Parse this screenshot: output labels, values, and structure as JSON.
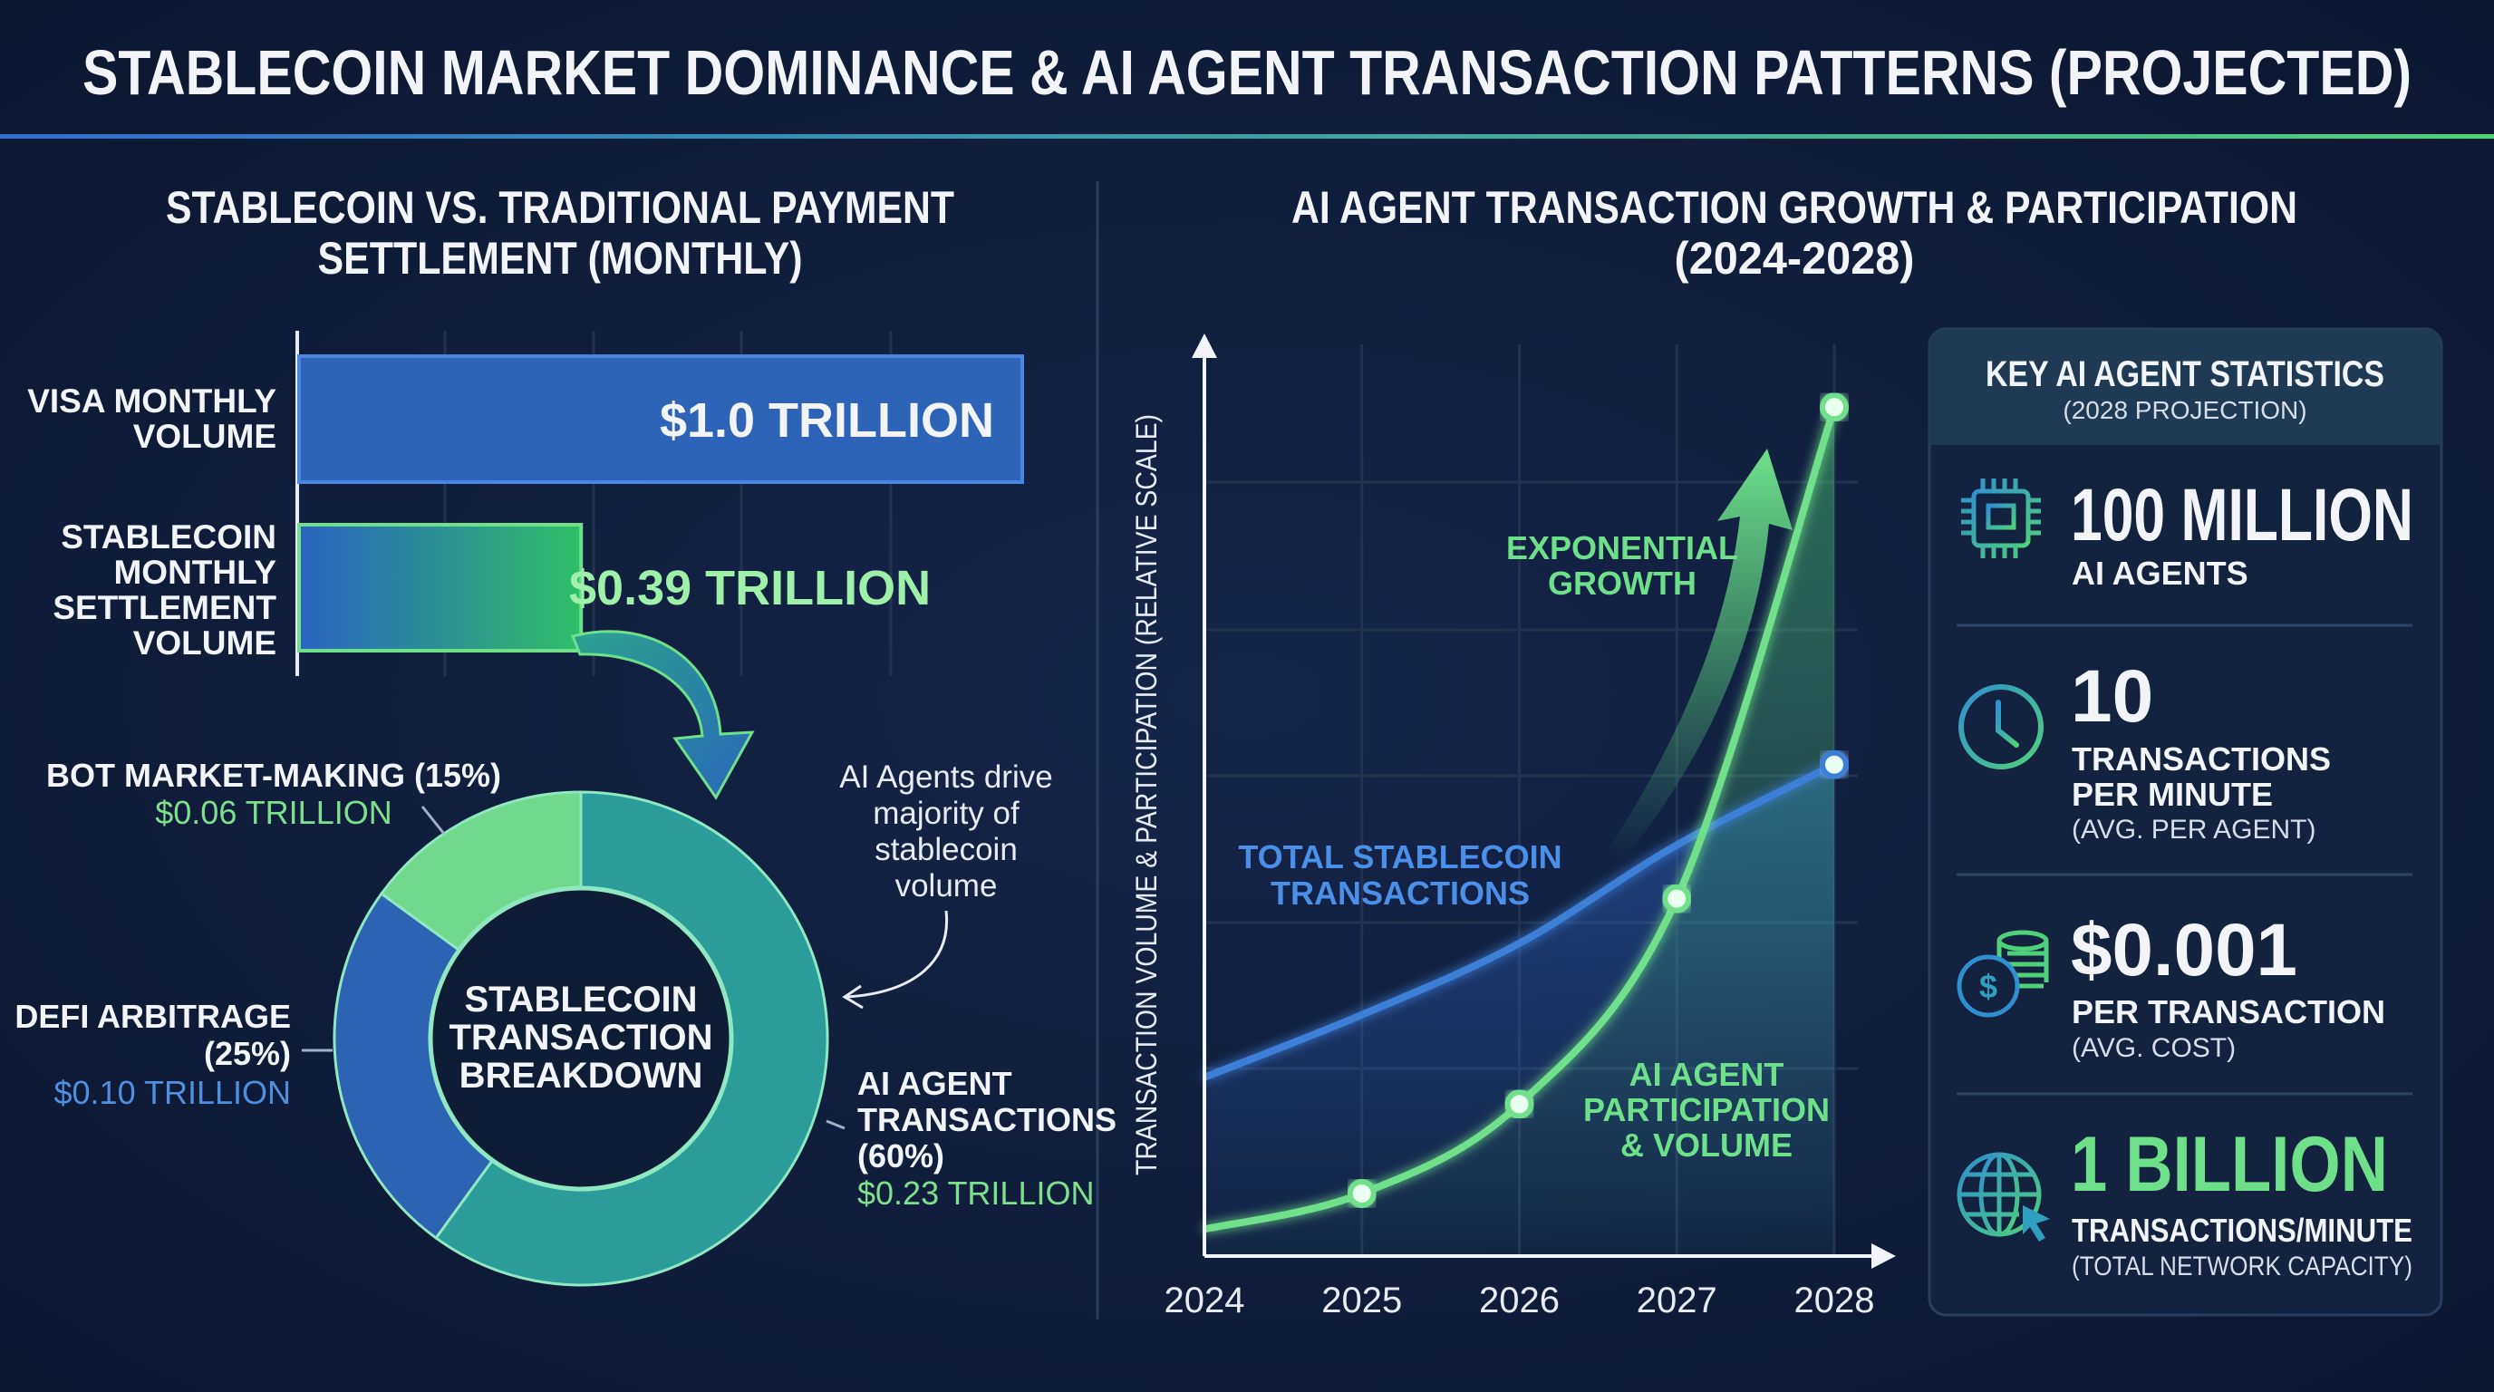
{
  "title": "STABLECOIN MARKET DOMINANCE & AI AGENT TRANSACTION PATTERNS (PROJECTED)",
  "colors": {
    "background": "#0e1a31",
    "blue": "#3d7fd6",
    "green": "#6fe08a",
    "teal": "#2a9d9a",
    "text": "#f2f4f7"
  },
  "chart_data": [
    {
      "type": "bar",
      "orientation": "horizontal",
      "title": [
        "STABLECOIN VS. TRADITIONAL PAYMENT",
        "SETTLEMENT (MONTHLY)"
      ],
      "categories": [
        [
          "VISA MONTHLY",
          "VOLUME"
        ],
        [
          "STABLECOIN",
          "MONTHLY",
          "SETTLEMENT",
          "VOLUME"
        ]
      ],
      "values": [
        1.0,
        0.39
      ],
      "data_labels": [
        "$1.0 TRILLION",
        "$0.39 TRILLION"
      ],
      "grid": true
    },
    {
      "type": "pie",
      "donut": true,
      "center_label": [
        "STABLECOIN",
        "TRANSACTION",
        "BREAKDOWN"
      ],
      "slices": [
        {
          "label": [
            "AI AGENT",
            "TRANSACTIONS",
            "(60%)"
          ],
          "percent": 60,
          "value_label": "$0.23 TRILLION",
          "color": "#2a9d9a"
        },
        {
          "label": [
            "DEFI ARBITRAGE",
            "(25%)"
          ],
          "percent": 25,
          "value_label": "$0.10 TRILLION",
          "color": "#2c63b3"
        },
        {
          "label": [
            "BOT MARKET-MAKING (15%)"
          ],
          "percent": 15,
          "value_label": "$0.06 TRILLION",
          "color": "#72d98c"
        }
      ],
      "annotation": [
        "AI Agents drive",
        "majority of",
        "stablecoin",
        "volume"
      ]
    },
    {
      "type": "line",
      "title": [
        "AI AGENT TRANSACTION GROWTH & PARTICIPATION",
        "(2024-2028)"
      ],
      "ylabel": "TRANSACTION VOLUME & PARTICIPATION (RELATIVE SCALE)",
      "x": [
        2024,
        2025,
        2026,
        2027,
        2028
      ],
      "ylim": [
        0,
        100
      ],
      "grid": true,
      "series": [
        {
          "name": [
            "TOTAL STABLECOIN",
            "TRANSACTIONS"
          ],
          "values": [
            20,
            27,
            35,
            46,
            55
          ],
          "color": "#3d7fd6"
        },
        {
          "name": [
            "AI AGENT",
            "PARTICIPATION",
            "& VOLUME"
          ],
          "values": [
            3,
            7,
            17,
            40,
            95
          ],
          "color": "#6fe08a"
        }
      ],
      "annotation": [
        "EXPONENTIAL",
        "GROWTH"
      ]
    }
  ],
  "stats": {
    "title": "KEY AI AGENT STATISTICS",
    "subtitle": "(2028 PROJECTION)",
    "items": [
      {
        "icon": "chip-icon",
        "value": "100 MILLION",
        "lines": [
          "AI AGENTS"
        ]
      },
      {
        "icon": "clock-icon",
        "value": "10",
        "lines": [
          "TRANSACTIONS",
          "PER MINUTE"
        ],
        "note": "(AVG. PER AGENT)"
      },
      {
        "icon": "coins-icon",
        "value": "$0.001",
        "lines": [
          "PER TRANSACTION"
        ],
        "note": "(AVG. COST)"
      },
      {
        "icon": "globe-cursor-icon",
        "value": "1 BILLION",
        "lines": [
          "TRANSACTIONS/MINUTE"
        ],
        "note": "(TOTAL NETWORK CAPACITY)"
      }
    ]
  }
}
